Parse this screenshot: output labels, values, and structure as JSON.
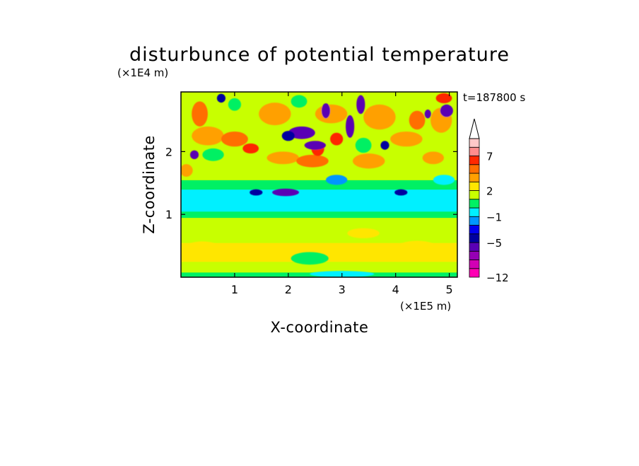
{
  "chart_data": {
    "type": "heatmap",
    "title": "disturbunce of potential temperature",
    "xlabel": "X-coordinate",
    "ylabel": "Z-coordinate",
    "x_unit": "(×1E5 m)",
    "y_unit": "(×1E4 m)",
    "time_label": "t=187800 s",
    "xlim": [
      0,
      5.15
    ],
    "ylim": [
      0,
      2.95
    ],
    "x_ticks": [
      {
        "value": 1,
        "label": "1"
      },
      {
        "value": 2,
        "label": "2"
      },
      {
        "value": 3,
        "label": "3"
      },
      {
        "value": 4,
        "label": "4"
      },
      {
        "value": 5,
        "label": "5"
      }
    ],
    "y_ticks": [
      {
        "value": 1,
        "label": "1"
      },
      {
        "value": 2,
        "label": "2"
      }
    ],
    "colorbar": {
      "levels": [
        -12,
        -10,
        -8,
        -6,
        -5,
        -4,
        -2,
        -1,
        0,
        1,
        2,
        4,
        5,
        6,
        7,
        8,
        10
      ],
      "colors": [
        "#ff00b4",
        "#d200b4",
        "#9600b4",
        "#5a00b4",
        "#0000a0",
        "#0000f0",
        "#0096ff",
        "#00f0ff",
        "#00f064",
        "#c8ff00",
        "#ffe600",
        "#ffa000",
        "#ff6e00",
        "#ff2800",
        "#ff8c8c",
        "#ffc8c8"
      ],
      "labels": [
        {
          "value": -12,
          "label": "−12"
        },
        {
          "value": -5,
          "label": "−5"
        },
        {
          "value": -1,
          "label": "−1"
        },
        {
          "value": 2,
          "label": "2"
        },
        {
          "value": 7,
          "label": "7"
        }
      ],
      "extend": "max"
    },
    "field_bands": [
      {
        "z_from": 0.0,
        "z_to": 0.08,
        "value": 0.3,
        "color": "#00f064"
      },
      {
        "z_from": 0.08,
        "z_to": 0.25,
        "value": 1.3,
        "color": "#c8ff00"
      },
      {
        "z_from": 0.25,
        "z_to": 0.55,
        "value": 2.3,
        "color": "#ffe600"
      },
      {
        "z_from": 0.55,
        "z_to": 0.75,
        "value": 1.5,
        "color": "#c8ff00"
      },
      {
        "z_from": 0.75,
        "z_to": 0.95,
        "value": 1.2,
        "color": "#c8ff00"
      },
      {
        "z_from": 0.95,
        "z_to": 1.05,
        "value": 0.4,
        "color": "#00f064"
      },
      {
        "z_from": 1.05,
        "z_to": 1.4,
        "value": -0.5,
        "color": "#00f0ff"
      },
      {
        "z_from": 1.4,
        "z_to": 1.55,
        "value": 0.5,
        "color": "#00f064"
      },
      {
        "z_from": 1.55,
        "z_to": 2.95,
        "value": 1.5,
        "color": "#c8ff00"
      }
    ],
    "field_features": [
      {
        "x": 0.4,
        "z": 0.45,
        "rx": 0.35,
        "rz": 0.12,
        "value": 3.5
      },
      {
        "x": 1.6,
        "z": 0.4,
        "rx": 0.25,
        "rz": 0.1,
        "value": 3.5
      },
      {
        "x": 4.4,
        "z": 0.45,
        "rx": 0.4,
        "rz": 0.13,
        "value": 3.5
      },
      {
        "x": 3.4,
        "z": 0.7,
        "rx": 0.3,
        "rz": 0.08,
        "value": 3.5
      },
      {
        "x": 0.5,
        "z": 2.25,
        "rx": 0.3,
        "rz": 0.15,
        "value": 4.5
      },
      {
        "x": 0.35,
        "z": 2.6,
        "rx": 0.15,
        "rz": 0.2,
        "value": 5.5
      },
      {
        "x": 1.0,
        "z": 2.2,
        "rx": 0.25,
        "rz": 0.12,
        "value": 5.5
      },
      {
        "x": 1.3,
        "z": 2.05,
        "rx": 0.15,
        "rz": 0.08,
        "value": 6.5
      },
      {
        "x": 1.9,
        "z": 1.9,
        "rx": 0.3,
        "rz": 0.1,
        "value": 4.5
      },
      {
        "x": 2.45,
        "z": 1.85,
        "rx": 0.3,
        "rz": 0.1,
        "value": 5.5
      },
      {
        "x": 2.55,
        "z": 2.05,
        "rx": 0.12,
        "rz": 0.12,
        "value": 6.5
      },
      {
        "x": 3.5,
        "z": 1.85,
        "rx": 0.3,
        "rz": 0.12,
        "value": 4.5
      },
      {
        "x": 3.7,
        "z": 2.55,
        "rx": 0.3,
        "rz": 0.2,
        "value": 4.5
      },
      {
        "x": 4.2,
        "z": 2.2,
        "rx": 0.3,
        "rz": 0.12,
        "value": 4.5
      },
      {
        "x": 4.7,
        "z": 1.9,
        "rx": 0.2,
        "rz": 0.1,
        "value": 4.5
      },
      {
        "x": 4.85,
        "z": 2.5,
        "rx": 0.2,
        "rz": 0.2,
        "value": 4.5
      },
      {
        "x": 4.4,
        "z": 2.5,
        "rx": 0.15,
        "rz": 0.15,
        "value": 5.5
      },
      {
        "x": 1.75,
        "z": 2.6,
        "rx": 0.3,
        "rz": 0.18,
        "value": 4.5
      },
      {
        "x": 2.8,
        "z": 2.6,
        "rx": 0.3,
        "rz": 0.15,
        "value": 4.5
      },
      {
        "x": 0.1,
        "z": 1.7,
        "rx": 0.12,
        "rz": 0.1,
        "value": 4.5
      },
      {
        "x": 2.9,
        "z": 2.2,
        "rx": 0.12,
        "rz": 0.1,
        "value": 6.5
      },
      {
        "x": 2.25,
        "z": 2.3,
        "rx": 0.25,
        "rz": 0.1,
        "value": -5.5
      },
      {
        "x": 2.5,
        "z": 2.1,
        "rx": 0.2,
        "rz": 0.07,
        "value": -5.5
      },
      {
        "x": 2.0,
        "z": 2.25,
        "rx": 0.12,
        "rz": 0.08,
        "value": -4.5
      },
      {
        "x": 3.15,
        "z": 2.4,
        "rx": 0.08,
        "rz": 0.18,
        "value": -5.5
      },
      {
        "x": 3.35,
        "z": 2.75,
        "rx": 0.08,
        "rz": 0.15,
        "value": -5.5
      },
      {
        "x": 2.7,
        "z": 2.65,
        "rx": 0.08,
        "rz": 0.12,
        "value": -5.5
      },
      {
        "x": 0.25,
        "z": 1.95,
        "rx": 0.08,
        "rz": 0.07,
        "value": -5.5
      },
      {
        "x": 4.95,
        "z": 2.65,
        "rx": 0.12,
        "rz": 0.1,
        "value": -5.5
      },
      {
        "x": 4.6,
        "z": 2.6,
        "rx": 0.06,
        "rz": 0.07,
        "value": -5.5
      },
      {
        "x": 1.95,
        "z": 1.35,
        "rx": 0.25,
        "rz": 0.06,
        "value": -5.5
      },
      {
        "x": 1.4,
        "z": 1.35,
        "rx": 0.12,
        "rz": 0.05,
        "value": -4.5
      },
      {
        "x": 4.1,
        "z": 1.35,
        "rx": 0.12,
        "rz": 0.05,
        "value": -4.5
      },
      {
        "x": 3.8,
        "z": 2.1,
        "rx": 0.08,
        "rz": 0.07,
        "value": -4.5
      },
      {
        "x": 0.75,
        "z": 2.85,
        "rx": 0.08,
        "rz": 0.07,
        "value": -4.5
      },
      {
        "x": 2.9,
        "z": 1.55,
        "rx": 0.2,
        "rz": 0.08,
        "value": -1.5
      },
      {
        "x": 0.6,
        "z": 1.95,
        "rx": 0.2,
        "rz": 0.1,
        "value": 0.5
      },
      {
        "x": 3.4,
        "z": 2.1,
        "rx": 0.15,
        "rz": 0.12,
        "value": 0.5
      },
      {
        "x": 2.2,
        "z": 2.8,
        "rx": 0.15,
        "rz": 0.1,
        "value": 0.5
      },
      {
        "x": 4.9,
        "z": 1.55,
        "rx": 0.2,
        "rz": 0.08,
        "value": -0.5
      },
      {
        "x": 1.0,
        "z": 2.75,
        "rx": 0.12,
        "rz": 0.1,
        "value": 0.5
      },
      {
        "x": 3.0,
        "z": 0.05,
        "rx": 0.6,
        "rz": 0.05,
        "value": -0.5
      },
      {
        "x": 2.4,
        "z": 0.3,
        "rx": 0.35,
        "rz": 0.1,
        "value": 0.5
      },
      {
        "x": 4.9,
        "z": 2.85,
        "rx": 0.15,
        "rz": 0.08,
        "value": 6.5
      }
    ]
  }
}
